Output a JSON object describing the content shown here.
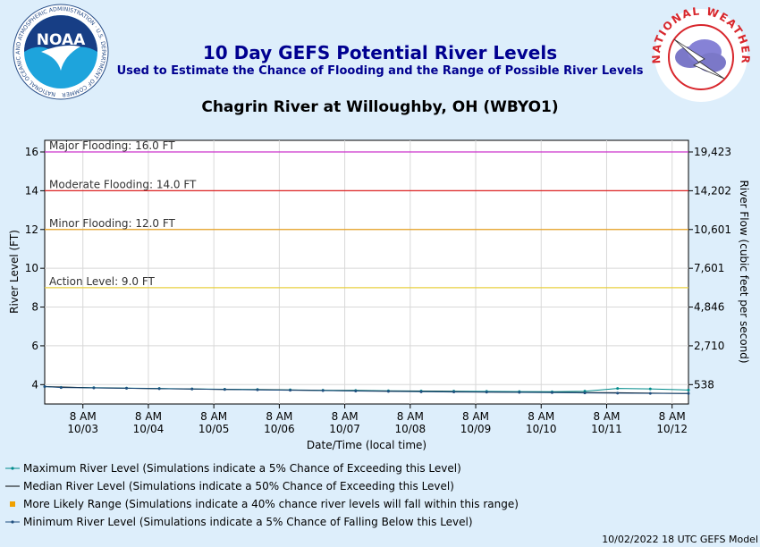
{
  "header": {
    "title": "10 Day GEFS Potential River Levels",
    "subtitle": "Used to Estimate the Chance of Flooding and the Range of Possible River Levels",
    "site": "Chagrin River at Willoughby, OH (WBYO1)",
    "noaa_logo_text": "NOAA",
    "noaa_ring_text": "NATIONAL OCEANIC AND ATMOSPHERIC ADMINISTRATION · U.S. DEPARTMENT OF COMMERCE",
    "nws_ring_text": "NATIONAL WEATHER SERVICE"
  },
  "footer": {
    "note": "10/02/2022 18 UTC GEFS Model"
  },
  "legend": [
    {
      "label": "Maximum River Level (Simulations indicate a 5% Chance of Exceeding this Level)",
      "color": "#008b8b",
      "style": "line-dots"
    },
    {
      "label": "Median River Level (Simulations indicate a 50% Chance of Exceeding this Level)",
      "color": "#000000",
      "style": "line"
    },
    {
      "label": "More Likely Range (Simulations indicate a 40% chance river levels will fall within this range)",
      "color": "#f0a000",
      "style": "square"
    },
    {
      "label": "Minimum River Level (Simulations indicate a 5% Chance of Falling Below this Level)",
      "color": "#1f4f7f",
      "style": "line-dots"
    }
  ],
  "chart_data": {
    "type": "line",
    "xlabel": "Date/Time (local time)",
    "ylabel": "River Level (FT)",
    "y2label": "River Flow (cubic feet per second)",
    "ylim": [
      3,
      16.6
    ],
    "yticks": [
      4,
      6,
      8,
      10,
      12,
      14,
      16
    ],
    "y2ticks": [
      {
        "stage": 4,
        "label": "538"
      },
      {
        "stage": 6,
        "label": "2,710"
      },
      {
        "stage": 8,
        "label": "4,846"
      },
      {
        "stage": 10,
        "label": "7,601"
      },
      {
        "stage": 12,
        "label": "10,601"
      },
      {
        "stage": 14,
        "label": "14,202"
      },
      {
        "stage": 16,
        "label": "19,423"
      }
    ],
    "xlim": [
      "10/02 18:00",
      "10/12 14:00"
    ],
    "xticks": [
      {
        "t": "10/03 08:00",
        "time": "8 AM",
        "date": "10/03"
      },
      {
        "t": "10/04 08:00",
        "time": "8 AM",
        "date": "10/04"
      },
      {
        "t": "10/05 08:00",
        "time": "8 AM",
        "date": "10/05"
      },
      {
        "t": "10/06 08:00",
        "time": "8 AM",
        "date": "10/06"
      },
      {
        "t": "10/07 08:00",
        "time": "8 AM",
        "date": "10/07"
      },
      {
        "t": "10/08 08:00",
        "time": "8 AM",
        "date": "10/08"
      },
      {
        "t": "10/09 08:00",
        "time": "8 AM",
        "date": "10/09"
      },
      {
        "t": "10/10 08:00",
        "time": "8 AM",
        "date": "10/10"
      },
      {
        "t": "10/11 08:00",
        "time": "8 AM",
        "date": "10/11"
      },
      {
        "t": "10/12 08:00",
        "time": "8 AM",
        "date": "10/12"
      }
    ],
    "thresholds": [
      {
        "label": "Major Flooding: 16.0 FT",
        "value": 16.0,
        "color": "#cc33cc"
      },
      {
        "label": "Moderate Flooding: 14.0 FT",
        "value": 14.0,
        "color": "#dd2222"
      },
      {
        "label": "Minor Flooding: 12.0 FT",
        "value": 12.0,
        "color": "#e8a020"
      },
      {
        "label": "Action Level: 9.0 FT",
        "value": 9.0,
        "color": "#e8d040"
      }
    ],
    "grid": true,
    "series": [
      {
        "name": "Maximum River Level",
        "color": "#008b8b",
        "points": [
          [
            "10/02 18:00",
            3.9
          ],
          [
            "10/03 00:00",
            3.86
          ],
          [
            "10/03 12:00",
            3.84
          ],
          [
            "10/04 00:00",
            3.82
          ],
          [
            "10/04 12:00",
            3.8
          ],
          [
            "10/05 00:00",
            3.78
          ],
          [
            "10/05 12:00",
            3.76
          ],
          [
            "10/06 00:00",
            3.75
          ],
          [
            "10/06 12:00",
            3.73
          ],
          [
            "10/07 00:00",
            3.71
          ],
          [
            "10/07 12:00",
            3.7
          ],
          [
            "10/08 00:00",
            3.68
          ],
          [
            "10/08 12:00",
            3.67
          ],
          [
            "10/09 00:00",
            3.66
          ],
          [
            "10/09 12:00",
            3.65
          ],
          [
            "10/10 00:00",
            3.64
          ],
          [
            "10/10 12:00",
            3.63
          ],
          [
            "10/11 00:00",
            3.66
          ],
          [
            "10/11 12:00",
            3.8
          ],
          [
            "10/12 00:00",
            3.78
          ],
          [
            "10/12 14:00",
            3.72
          ]
        ]
      },
      {
        "name": "Median River Level",
        "color": "#000000",
        "points": [
          [
            "10/02 18:00",
            3.9
          ],
          [
            "10/03 12:00",
            3.83
          ],
          [
            "10/04 12:00",
            3.79
          ],
          [
            "10/05 12:00",
            3.75
          ],
          [
            "10/06 12:00",
            3.72
          ],
          [
            "10/07 12:00",
            3.68
          ],
          [
            "10/08 12:00",
            3.65
          ],
          [
            "10/09 12:00",
            3.62
          ],
          [
            "10/10 12:00",
            3.6
          ],
          [
            "10/11 12:00",
            3.58
          ],
          [
            "10/12 14:00",
            3.54
          ]
        ]
      },
      {
        "name": "Minimum River Level",
        "color": "#1f4f7f",
        "points": [
          [
            "10/02 18:00",
            3.9
          ],
          [
            "10/03 00:00",
            3.85
          ],
          [
            "10/03 12:00",
            3.83
          ],
          [
            "10/04 00:00",
            3.81
          ],
          [
            "10/04 12:00",
            3.79
          ],
          [
            "10/05 00:00",
            3.77
          ],
          [
            "10/05 12:00",
            3.75
          ],
          [
            "10/06 00:00",
            3.73
          ],
          [
            "10/06 12:00",
            3.71
          ],
          [
            "10/07 00:00",
            3.69
          ],
          [
            "10/07 12:00",
            3.67
          ],
          [
            "10/08 00:00",
            3.65
          ],
          [
            "10/08 12:00",
            3.63
          ],
          [
            "10/09 00:00",
            3.62
          ],
          [
            "10/09 12:00",
            3.61
          ],
          [
            "10/10 00:00",
            3.6
          ],
          [
            "10/10 12:00",
            3.59
          ],
          [
            "10/11 00:00",
            3.57
          ],
          [
            "10/11 12:00",
            3.56
          ],
          [
            "10/12 00:00",
            3.55
          ],
          [
            "10/12 14:00",
            3.54
          ]
        ]
      }
    ]
  }
}
